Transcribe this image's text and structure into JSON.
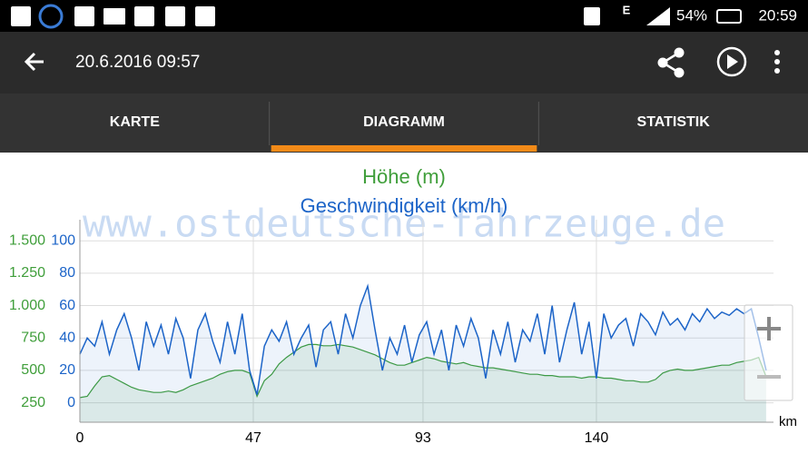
{
  "status_bar": {
    "network": "E",
    "battery": "54%",
    "time": "20:59"
  },
  "toolbar": {
    "title": "20.6.2016 09:57"
  },
  "tabs": [
    "KARTE",
    "DIAGRAMM",
    "STATISTIK"
  ],
  "active_tab": 1,
  "watermark": "www.ostdeutsche-fahrzeuge.de",
  "chart_data": {
    "type": "line",
    "x_label": "km",
    "x": [
      0,
      2,
      4,
      6,
      8,
      10,
      12,
      14,
      16,
      18,
      20,
      22,
      24,
      26,
      28,
      30,
      32,
      34,
      36,
      38,
      40,
      42,
      44,
      46,
      48,
      50,
      52,
      54,
      56,
      58,
      60,
      62,
      64,
      66,
      68,
      70,
      72,
      74,
      76,
      78,
      80,
      82,
      84,
      86,
      88,
      90,
      92,
      94,
      96,
      98,
      100,
      102,
      104,
      106,
      108,
      110,
      112,
      114,
      116,
      118,
      120,
      122,
      124,
      126,
      128,
      130,
      132,
      134,
      136,
      138,
      140,
      142,
      144,
      146,
      148,
      150,
      152,
      154,
      156,
      158,
      160,
      162,
      164,
      166,
      168,
      170,
      172,
      174,
      176,
      178,
      180,
      182,
      184,
      186
    ],
    "xlim": [
      0,
      188
    ],
    "xticks": [
      0,
      47,
      93,
      140
    ],
    "ylim": [
      100,
      1662.5
    ],
    "yticks": [
      250,
      500,
      750,
      {
        "value": 1000,
        "label": "1.000"
      },
      {
        "value": 1250,
        "label": "1.250"
      },
      {
        "value": 1500,
        "label": "1.500"
      }
    ],
    "y2lim": [
      -12,
      113
    ],
    "y2ticks": [
      0,
      20,
      40,
      60,
      80,
      100
    ],
    "grid": true,
    "series": [
      {
        "name": "Höhe (m)",
        "color": "#3f9e3a",
        "values": [
          290,
          300,
          380,
          450,
          460,
          430,
          400,
          370,
          350,
          340,
          330,
          330,
          340,
          330,
          350,
          380,
          400,
          420,
          440,
          470,
          490,
          500,
          500,
          480,
          300,
          420,
          470,
          550,
          600,
          640,
          680,
          700,
          700,
          690,
          690,
          700,
          690,
          680,
          660,
          640,
          620,
          590,
          560,
          540,
          540,
          560,
          580,
          600,
          590,
          570,
          560,
          550,
          560,
          540,
          530,
          520,
          520,
          510,
          500,
          490,
          480,
          470,
          470,
          460,
          460,
          450,
          450,
          450,
          440,
          450,
          450,
          440,
          440,
          430,
          420,
          420,
          410,
          410,
          430,
          480,
          500,
          510,
          500,
          500,
          510,
          520,
          530,
          540,
          540,
          560,
          570,
          580,
          600,
          450
        ]
      },
      {
        "name": "Geschwindigkeit (km/h)",
        "color": "#1c64c8",
        "axis": "y2",
        "values": [
          30,
          40,
          35,
          50,
          30,
          45,
          55,
          40,
          20,
          50,
          35,
          48,
          30,
          52,
          40,
          15,
          45,
          55,
          38,
          25,
          50,
          30,
          55,
          20,
          5,
          35,
          45,
          38,
          50,
          30,
          40,
          48,
          22,
          45,
          50,
          30,
          55,
          40,
          60,
          72,
          45,
          20,
          40,
          30,
          48,
          25,
          42,
          50,
          30,
          45,
          20,
          48,
          35,
          52,
          40,
          15,
          45,
          30,
          50,
          25,
          45,
          38,
          55,
          30,
          60,
          25,
          45,
          62,
          30,
          50,
          15,
          55,
          40,
          48,
          52,
          35,
          55,
          50,
          42,
          56,
          48,
          52,
          45,
          55,
          50,
          58,
          52,
          56,
          54,
          58,
          55,
          58,
          40,
          20
        ]
      }
    ]
  }
}
